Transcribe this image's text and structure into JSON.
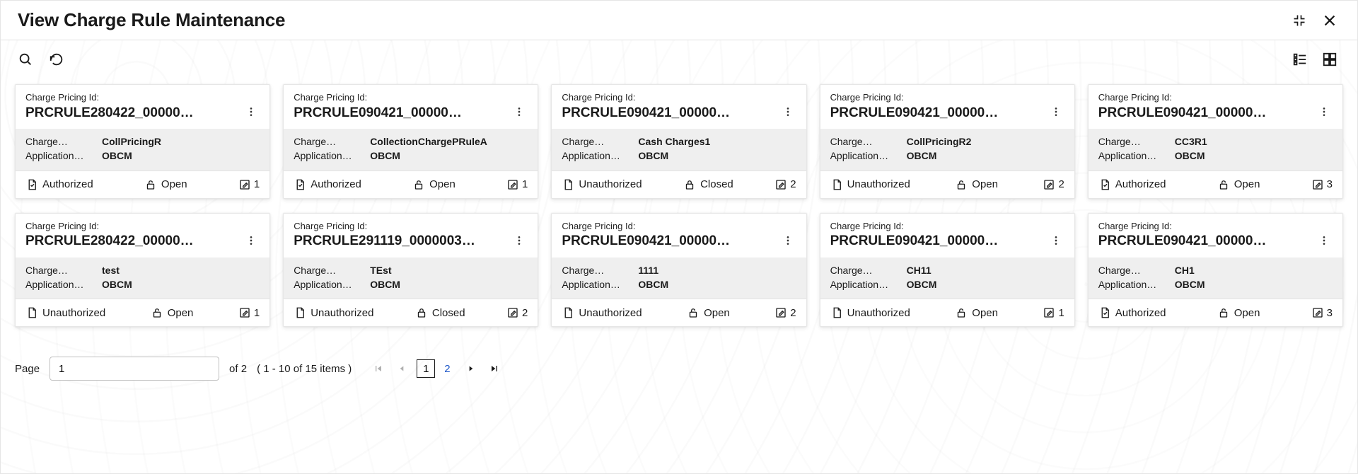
{
  "header": {
    "title": "View Charge Rule Maintenance"
  },
  "toolbar": {
    "search_icon": "search-icon",
    "refresh_icon": "refresh-icon",
    "list_view_icon": "list-view-icon",
    "grid_view_icon": "grid-view-icon"
  },
  "card_labels": {
    "id_label": "Charge Pricing Id:",
    "charge_label": "Charge…",
    "application_label": "Application…"
  },
  "status_labels": {
    "authorized": "Authorized",
    "unauthorized": "Unauthorized",
    "open": "Open",
    "closed": "Closed"
  },
  "cards": [
    {
      "id": "PRCRULE280422_00000…",
      "charge": "CollPricingR",
      "application": "OBCM",
      "auth": "authorized",
      "state": "open",
      "count": 1
    },
    {
      "id": "PRCRULE090421_00000…",
      "charge": "CollectionChargePRuleA",
      "application": "OBCM",
      "auth": "authorized",
      "state": "open",
      "count": 1
    },
    {
      "id": "PRCRULE090421_00000…",
      "charge": "Cash Charges1",
      "application": "OBCM",
      "auth": "unauthorized",
      "state": "closed",
      "count": 2
    },
    {
      "id": "PRCRULE090421_00000…",
      "charge": "CollPricingR2",
      "application": "OBCM",
      "auth": "unauthorized",
      "state": "open",
      "count": 2
    },
    {
      "id": "PRCRULE090421_00000…",
      "charge": "CC3R1",
      "application": "OBCM",
      "auth": "authorized",
      "state": "open",
      "count": 3
    },
    {
      "id": "PRCRULE280422_00000…",
      "charge": "test",
      "application": "OBCM",
      "auth": "unauthorized",
      "state": "open",
      "count": 1
    },
    {
      "id": "PRCRULE291119_0000003…",
      "charge": "TEst",
      "application": "OBCM",
      "auth": "unauthorized",
      "state": "closed",
      "count": 2
    },
    {
      "id": "PRCRULE090421_00000…",
      "charge": "1111",
      "application": "OBCM",
      "auth": "unauthorized",
      "state": "open",
      "count": 2
    },
    {
      "id": "PRCRULE090421_00000…",
      "charge": "CH11",
      "application": "OBCM",
      "auth": "unauthorized",
      "state": "open",
      "count": 1
    },
    {
      "id": "PRCRULE090421_00000…",
      "charge": "CH1",
      "application": "OBCM",
      "auth": "authorized",
      "state": "open",
      "count": 3
    }
  ],
  "pagination": {
    "page_label": "Page",
    "current_page_input": "1",
    "of_label": "of",
    "total_pages": "2",
    "range_text": "( 1 - 10 of 15 items )",
    "pages": [
      "1",
      "2"
    ],
    "active_page": "1"
  },
  "colors": {
    "text": "#1a1a1a",
    "card_body_bg": "#efefef",
    "border": "#e0e0e0",
    "link": "#2059c9",
    "disabled": "#b0b0b0"
  }
}
